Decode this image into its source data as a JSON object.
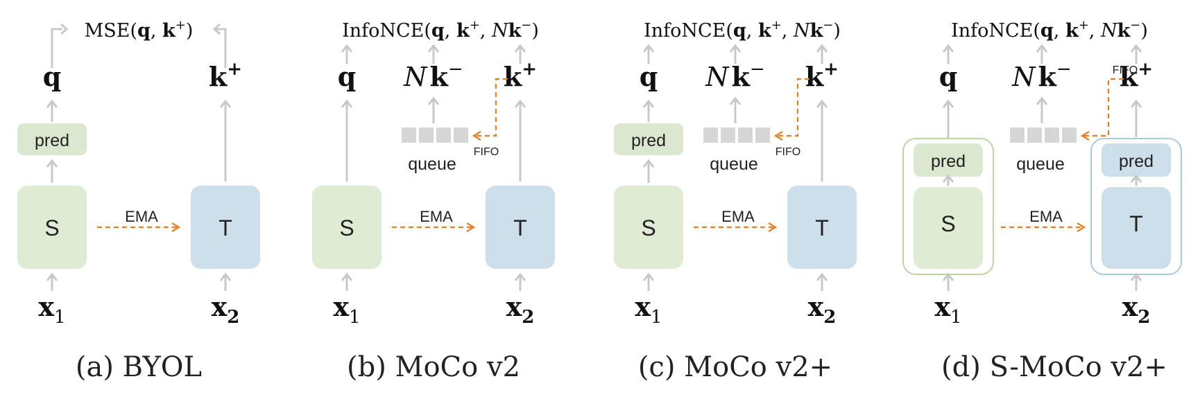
{
  "colors": {
    "student": "#e0ebd3",
    "teacher": "#cddfeb",
    "predictor": "#dbe8cf",
    "queue": "#d6d6d6",
    "ema": "#e67e22",
    "arrow": "#c8c8c8",
    "student_outline": "#b9d6a3",
    "teacher_outline": "#a9c9dc"
  },
  "panels": [
    {
      "loss_name": "MSE",
      "loss_args": "(q, k⁺)",
      "q": "q",
      "k_plus": "k",
      "k_neg": "",
      "pred": "pred",
      "queue": "",
      "fifo": "",
      "student": "S",
      "teacher": "T",
      "ema": "EMA",
      "x1": "x",
      "x1_sub": "1",
      "x2": "x",
      "x2_sub": "2",
      "caption": "(a) BYOL"
    },
    {
      "loss_name": "InfoNCE",
      "loss_args": "(q, k⁺, Nk⁻)",
      "q": "q",
      "k_plus": "k",
      "k_neg": "k",
      "pred": "",
      "queue": "queue",
      "fifo": "FIFO",
      "student": "S",
      "teacher": "T",
      "ema": "EMA",
      "x1": "x",
      "x1_sub": "1",
      "x2": "x",
      "x2_sub": "2",
      "caption": "(b) MoCo v2"
    },
    {
      "loss_name": "InfoNCE",
      "loss_args": "(q, k⁺, Nk⁻)",
      "q": "q",
      "k_plus": "k",
      "k_neg": "k",
      "pred": "pred",
      "queue": "queue",
      "fifo": "FIFO",
      "student": "S",
      "teacher": "T",
      "ema": "EMA",
      "x1": "x",
      "x1_sub": "1",
      "x2": "x",
      "x2_sub": "2",
      "caption": "(c) MoCo v2+"
    },
    {
      "loss_name": "InfoNCE",
      "loss_args": "(q, k⁺, Nk⁻)",
      "q": "q",
      "k_plus": "k",
      "k_neg": "k",
      "pred": "pred",
      "pred_teacher": "pred",
      "queue": "queue",
      "fifo": "FIFO",
      "student": "S",
      "teacher": "T",
      "ema": "EMA",
      "x1": "x",
      "x1_sub": "1",
      "x2": "x",
      "x2_sub": "2",
      "caption": "(d) S-MoCo v2+"
    }
  ]
}
